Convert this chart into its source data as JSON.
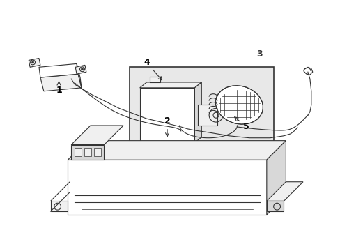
{
  "background_color": "#ffffff",
  "line_color": "#333333",
  "fill_white": "#ffffff",
  "fill_light": "#f0f0f0",
  "fill_medium": "#d8d8d8",
  "fill_box": "#e8e8e8",
  "figsize": [
    4.89,
    3.6
  ],
  "dpi": 100,
  "lw": 0.8
}
